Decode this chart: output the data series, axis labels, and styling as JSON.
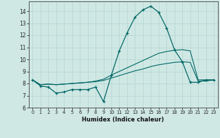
{
  "xlabel": "Humidex (Indice chaleur)",
  "xlim": [
    -0.5,
    23.5
  ],
  "ylim": [
    6,
    14.8
  ],
  "yticks": [
    6,
    7,
    8,
    9,
    10,
    11,
    12,
    13,
    14
  ],
  "xticks": [
    0,
    1,
    2,
    3,
    4,
    5,
    6,
    7,
    8,
    9,
    10,
    11,
    12,
    13,
    14,
    15,
    16,
    17,
    18,
    19,
    20,
    21,
    22,
    23
  ],
  "bg_color": "#cfe8e4",
  "line_color": "#006666",
  "grid_color": "#b8d8d4",
  "line1_x": [
    0,
    1,
    2,
    3,
    4,
    5,
    6,
    7,
    8,
    9,
    10,
    11,
    12,
    13,
    14,
    15,
    16,
    17,
    18,
    19,
    20,
    21,
    22,
    23
  ],
  "line1_y": [
    8.3,
    7.8,
    7.7,
    7.2,
    7.3,
    7.5,
    7.5,
    7.5,
    7.7,
    6.5,
    8.7,
    10.7,
    12.2,
    13.5,
    14.1,
    14.4,
    13.9,
    12.6,
    10.8,
    9.8,
    8.1,
    8.1,
    8.3,
    8.3
  ],
  "line2_x": [
    0,
    1,
    2,
    3,
    4,
    5,
    6,
    7,
    8,
    9,
    10,
    11,
    12,
    13,
    14,
    15,
    16,
    17,
    18,
    19,
    20,
    21,
    22,
    23
  ],
  "line2_y": [
    8.3,
    7.9,
    7.95,
    7.9,
    7.95,
    8.0,
    8.05,
    8.1,
    8.2,
    8.35,
    8.7,
    9.0,
    9.3,
    9.6,
    9.9,
    10.2,
    10.5,
    10.65,
    10.75,
    10.8,
    10.7,
    8.3,
    8.3,
    8.3
  ],
  "line3_x": [
    0,
    1,
    2,
    3,
    4,
    5,
    6,
    7,
    8,
    9,
    10,
    11,
    12,
    13,
    14,
    15,
    16,
    17,
    18,
    19,
    20,
    21,
    22,
    23
  ],
  "line3_y": [
    8.3,
    7.9,
    7.95,
    7.9,
    7.95,
    8.0,
    8.05,
    8.1,
    8.15,
    8.25,
    8.45,
    8.65,
    8.85,
    9.05,
    9.2,
    9.4,
    9.55,
    9.65,
    9.75,
    9.8,
    9.75,
    8.2,
    8.2,
    8.3
  ]
}
